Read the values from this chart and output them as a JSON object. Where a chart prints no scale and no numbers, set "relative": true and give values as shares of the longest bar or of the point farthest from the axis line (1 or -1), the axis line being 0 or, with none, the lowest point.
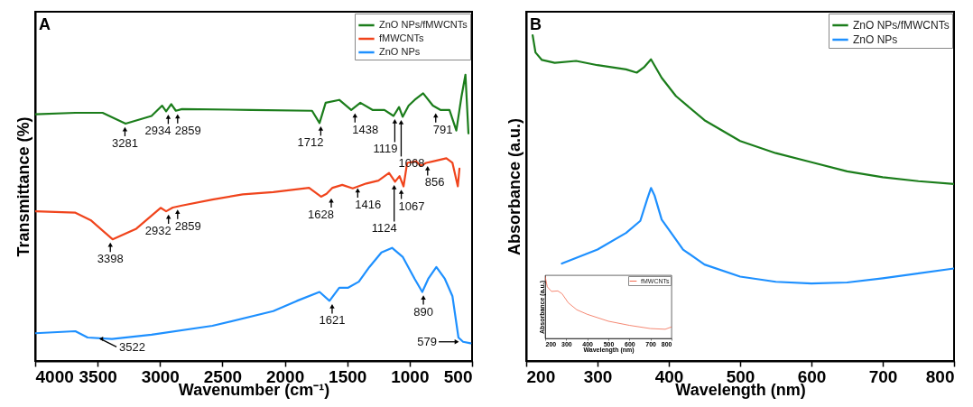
{
  "chart_data": [
    {
      "type": "line",
      "title": "A",
      "xlabel": "Wavenumber (cm⁻¹)",
      "ylabel": "Transmittance (%)",
      "relative": true,
      "xlim": [
        4000,
        500
      ],
      "xticks": [
        4000,
        3500,
        3000,
        2500,
        2000,
        1500,
        1000,
        500
      ],
      "legend": "top right",
      "series": [
        {
          "name": "ZnO NPs/fMWCNTs",
          "color": "#1b7d1b",
          "x": [
            4000,
            3678,
            3460,
            3276,
            3068,
            2983,
            2951,
            2910,
            2873,
            2824,
            2266,
            1782,
            1722,
            1673,
            1564,
            1468,
            1395,
            1298,
            1202,
            1129,
            1085,
            1056,
            1008,
            960,
            892,
            814,
            754,
            681,
            626,
            585,
            553,
            529
          ],
          "values": [
            0.862,
            0.867,
            0.867,
            0.829,
            0.856,
            0.892,
            0.872,
            0.897,
            0.874,
            0.88,
            0.877,
            0.874,
            0.831,
            0.902,
            0.912,
            0.877,
            0.902,
            0.877,
            0.877,
            0.856,
            0.887,
            0.853,
            0.892,
            0.912,
            0.935,
            0.892,
            0.877,
            0.877,
            0.805,
            0.923,
            1.0,
            0.795
          ]
        },
        {
          "name": "fMWCNTs",
          "color": "#f0441c",
          "x": [
            4000,
            3678,
            3556,
            3380,
            3190,
            2995,
            2951,
            2898,
            2824,
            2580,
            2337,
            2093,
            1806,
            1710,
            1666,
            1618,
            1540,
            1456,
            1347,
            1250,
            1165,
            1117,
            1081,
            1049,
            1020,
            948,
            911,
            868,
            814,
            706,
            657,
            614,
            601
          ],
          "values": [
            0.523,
            0.518,
            0.492,
            0.425,
            0.462,
            0.535,
            0.523,
            0.536,
            0.543,
            0.564,
            0.582,
            0.59,
            0.605,
            0.574,
            0.584,
            0.605,
            0.615,
            0.603,
            0.62,
            0.63,
            0.657,
            0.626,
            0.646,
            0.61,
            0.692,
            0.697,
            0.682,
            0.692,
            0.697,
            0.708,
            0.692,
            0.61,
            0.672
          ]
        },
        {
          "name": "ZnO NPs",
          "color": "#1e90ff",
          "x": [
            4000,
            3678,
            3580,
            3385,
            3068,
            2580,
            2093,
            1903,
            1722,
            1642,
            1564,
            1492,
            1407,
            1323,
            1226,
            1141,
            1056,
            960,
            899,
            851,
            786,
            718,
            657,
            609,
            572,
            512
          ],
          "values": [
            0.097,
            0.104,
            0.082,
            0.077,
            0.092,
            0.123,
            0.174,
            0.21,
            0.241,
            0.21,
            0.256,
            0.256,
            0.277,
            0.328,
            0.379,
            0.395,
            0.364,
            0.287,
            0.241,
            0.287,
            0.328,
            0.287,
            0.226,
            0.082,
            0.067,
            0.062
          ]
        }
      ],
      "annotations": [
        {
          "text": "3281",
          "x": 3281,
          "y": 0.829
        },
        {
          "text": "2934",
          "x": 2934,
          "y": 0.872
        },
        {
          "text": "2859",
          "x": 2859,
          "y": 0.874
        },
        {
          "text": "1712",
          "x": 1712,
          "y": 0.831
        },
        {
          "text": "1438",
          "x": 1438,
          "y": 0.877
        },
        {
          "text": "1119",
          "x": 1119,
          "y": 0.856
        },
        {
          "text": "1068",
          "x": 1068,
          "y": 0.853
        },
        {
          "text": "791",
          "x": 791,
          "y": 0.877
        },
        {
          "text": "3398",
          "x": 3398,
          "y": 0.425
        },
        {
          "text": "2932",
          "x": 2932,
          "y": 0.523
        },
        {
          "text": "2859",
          "x": 2859,
          "y": 0.54
        },
        {
          "text": "1628",
          "x": 1628,
          "y": 0.58
        },
        {
          "text": "1416",
          "x": 1416,
          "y": 0.615
        },
        {
          "text": "1124",
          "x": 1124,
          "y": 0.626
        },
        {
          "text": "1067",
          "x": 1067,
          "y": 0.61
        },
        {
          "text": "856",
          "x": 856,
          "y": 0.692
        },
        {
          "text": "3522",
          "x": 3522,
          "y": 0.09
        },
        {
          "text": "1621",
          "x": 1621,
          "y": 0.21
        },
        {
          "text": "890",
          "x": 890,
          "y": 0.241
        },
        {
          "text": "579",
          "x": 579,
          "y": 0.067
        }
      ]
    },
    {
      "type": "line",
      "title": "B",
      "xlabel": "Wavelength (nm)",
      "ylabel": "Absorbance (a.u.)",
      "relative": true,
      "xlim": [
        200,
        800
      ],
      "xticks": [
        200,
        300,
        400,
        500,
        600,
        700,
        800
      ],
      "legend": "top right",
      "series": [
        {
          "name": "ZnO NPs/fMWCNTs",
          "color": "#1b7d1b",
          "x": [
            209,
            213,
            222,
            240,
            270,
            300,
            340,
            355,
            365,
            375,
            390,
            410,
            450,
            500,
            550,
            600,
            650,
            700,
            750,
            800
          ],
          "values": [
            1.0,
            0.947,
            0.924,
            0.915,
            0.921,
            0.908,
            0.895,
            0.885,
            0.901,
            0.926,
            0.869,
            0.813,
            0.739,
            0.675,
            0.638,
            0.61,
            0.582,
            0.564,
            0.552,
            0.543
          ]
        },
        {
          "name": "ZnO NPs",
          "color": "#1e90ff",
          "x": [
            250,
            300,
            340,
            360,
            370,
            375,
            380,
            390,
            420,
            450,
            500,
            550,
            600,
            650,
            700,
            800
          ],
          "values": [
            0.299,
            0.342,
            0.393,
            0.43,
            0.499,
            0.531,
            0.508,
            0.434,
            0.342,
            0.296,
            0.259,
            0.243,
            0.238,
            0.241,
            0.254,
            0.284
          ]
        }
      ]
    },
    {
      "type": "line",
      "xlabel": "Wavelength (nm)",
      "ylabel": "Absorbance (a.u.)",
      "relative": true,
      "xlim": [
        200,
        800
      ],
      "xticks": [
        200,
        300,
        400,
        500,
        600,
        700,
        800
      ],
      "legend": "top right",
      "series": [
        {
          "name": "fMWCNTs",
          "color": "#f26a4f",
          "x": [
            200,
            210,
            230,
            260,
            280,
            310,
            350,
            400,
            500,
            600,
            700,
            770,
            800
          ],
          "values": [
            1.0,
            0.833,
            0.759,
            0.767,
            0.722,
            0.574,
            0.463,
            0.389,
            0.278,
            0.211,
            0.159,
            0.148,
            0.185
          ]
        }
      ]
    }
  ]
}
